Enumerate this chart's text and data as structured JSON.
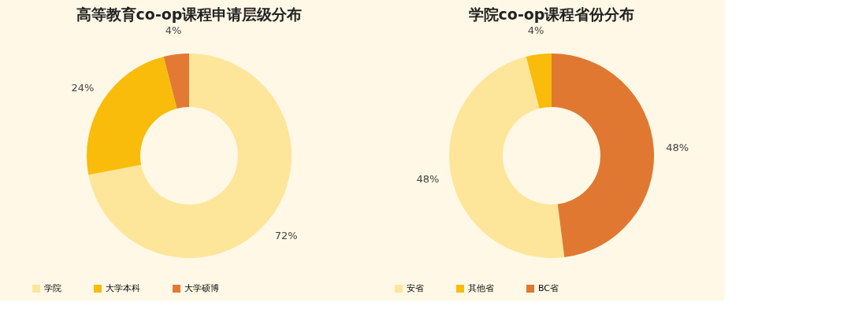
{
  "chart_data": [
    {
      "type": "donut",
      "title": "高等教育co-op课程申请层级分布",
      "categories": [
        "学院",
        "大学本科",
        "大学硕博"
      ],
      "values": [
        72,
        24,
        4
      ],
      "value_labels": [
        "72%",
        "24%",
        "4%"
      ],
      "colors": [
        "#fde69a",
        "#f9bc0a",
        "#e27a34"
      ],
      "legend": "bottom"
    },
    {
      "type": "donut",
      "title": "学院co-op课程省份分布",
      "categories": [
        "安省",
        "其他省",
        "BC省"
      ],
      "values": [
        48,
        4,
        48
      ],
      "value_labels": [
        "48%",
        "4%",
        "48%"
      ],
      "colors": [
        "#fde69a",
        "#f9bc0a",
        "#e07832"
      ],
      "legend": "bottom"
    }
  ]
}
